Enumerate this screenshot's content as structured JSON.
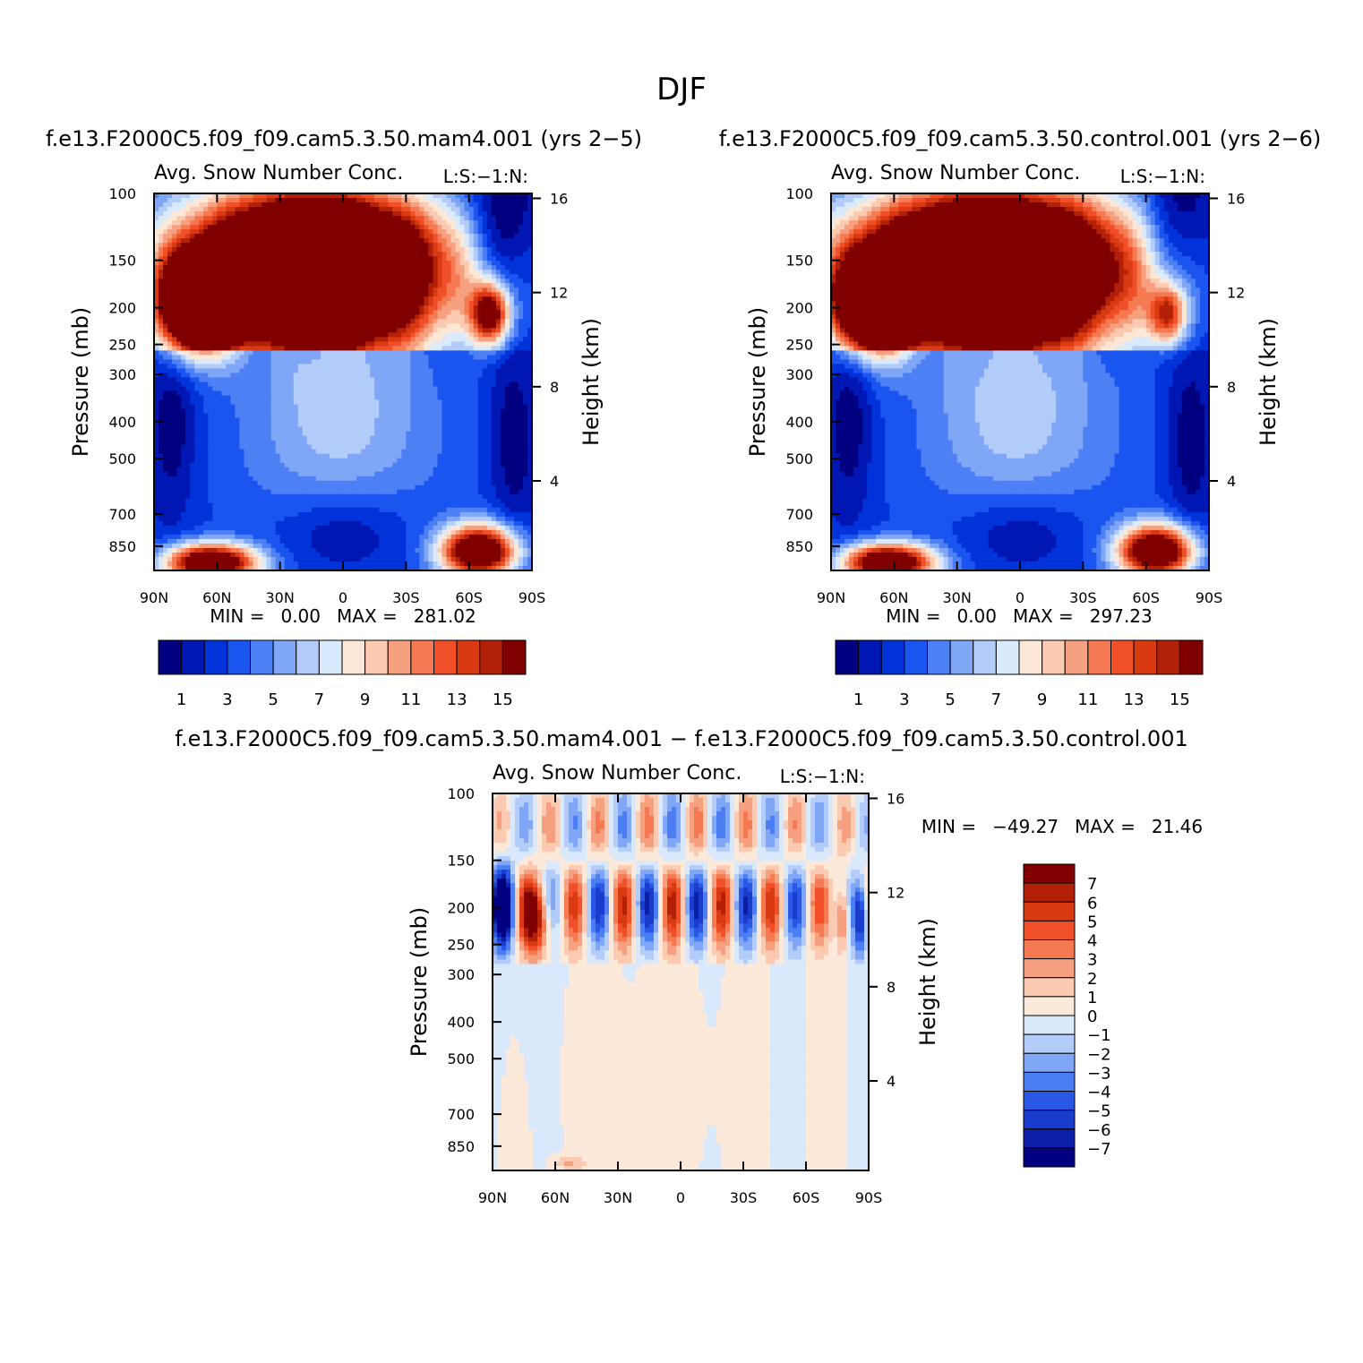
{
  "figure_title": "DJF",
  "chart_data": [
    {
      "type": "heatmap",
      "case_title": "f.e13.F2000C5.f09_f09.cam5.3.50.mam4.001 (yrs 2−5)",
      "title": "Avg. Snow Number Conc.",
      "corner_label": "L:S:−1:N:",
      "xlabel": "",
      "ylabel": "Pressure (mb)",
      "ylabel_right": "Height (km)",
      "x_ticks": [
        "90N",
        "60N",
        "30N",
        "0",
        "30S",
        "60S",
        "90S"
      ],
      "y_ticks": [
        "100",
        "150",
        "200",
        "250",
        "300",
        "400",
        "500",
        "700",
        "850"
      ],
      "y_ticks_right": [
        "16",
        "12",
        "8",
        "4"
      ],
      "min_label": "MIN =",
      "min_value": "0.00",
      "max_label": "MAX =",
      "max_value": "281.02",
      "colorbar": {
        "orientation": "horizontal",
        "tick_labels": [
          "1",
          "3",
          "5",
          "7",
          "9",
          "11",
          "13",
          "15"
        ]
      }
    },
    {
      "type": "heatmap",
      "case_title": "f.e13.F2000C5.f09_f09.cam5.3.50.control.001 (yrs 2−6)",
      "title": "Avg. Snow Number Conc.",
      "corner_label": "L:S:−1:N:",
      "xlabel": "",
      "ylabel": "Pressure (mb)",
      "ylabel_right": "Height (km)",
      "x_ticks": [
        "90N",
        "60N",
        "30N",
        "0",
        "30S",
        "60S",
        "90S"
      ],
      "y_ticks": [
        "100",
        "150",
        "200",
        "250",
        "300",
        "400",
        "500",
        "700",
        "850"
      ],
      "y_ticks_right": [
        "16",
        "12",
        "8",
        "4"
      ],
      "min_label": "MIN =",
      "min_value": "0.00",
      "max_label": "MAX =",
      "max_value": "297.23",
      "colorbar": {
        "orientation": "horizontal",
        "tick_labels": [
          "1",
          "3",
          "5",
          "7",
          "9",
          "11",
          "13",
          "15"
        ]
      }
    },
    {
      "type": "heatmap",
      "case_title": "f.e13.F2000C5.f09_f09.cam5.3.50.mam4.001 − f.e13.F2000C5.f09_f09.cam5.3.50.control.001",
      "title": "Avg. Snow Number Conc.",
      "corner_label": "L:S:−1:N:",
      "xlabel": "",
      "ylabel": "Pressure (mb)",
      "ylabel_right": "Height (km)",
      "x_ticks": [
        "90N",
        "60N",
        "30N",
        "0",
        "30S",
        "60S",
        "90S"
      ],
      "y_ticks": [
        "100",
        "150",
        "200",
        "250",
        "300",
        "400",
        "500",
        "700",
        "850"
      ],
      "y_ticks_right": [
        "16",
        "12",
        "8",
        "4"
      ],
      "min_label": "MIN =",
      "min_value": "−49.27",
      "max_label": "MAX =",
      "max_value": "21.46",
      "colorbar": {
        "orientation": "vertical",
        "tick_labels": [
          "7",
          "6",
          "5",
          "4",
          "3",
          "2",
          "1",
          "0",
          "−1",
          "−2",
          "−3",
          "−4",
          "−5",
          "−6",
          "−7"
        ]
      }
    }
  ],
  "colors": {
    "abs_scale": [
      "#000080",
      "#0017b3",
      "#0033d9",
      "#1a55f0",
      "#4d80f5",
      "#80a6f7",
      "#b3ccfa",
      "#d9eafc",
      "#fde8d8",
      "#fccab0",
      "#f7a080",
      "#f57a52",
      "#f04f28",
      "#d93a12",
      "#b32008",
      "#800000"
    ],
    "diff_scale": [
      "#000080",
      "#0b1fa6",
      "#1a3ccc",
      "#2a57e6",
      "#4a7ef2",
      "#80a6f7",
      "#b3ccfa",
      "#d9e8fb",
      "#fde9d9",
      "#fccab0",
      "#f7a080",
      "#f57a52",
      "#f04f28",
      "#d93a12",
      "#b32008",
      "#800000"
    ]
  }
}
